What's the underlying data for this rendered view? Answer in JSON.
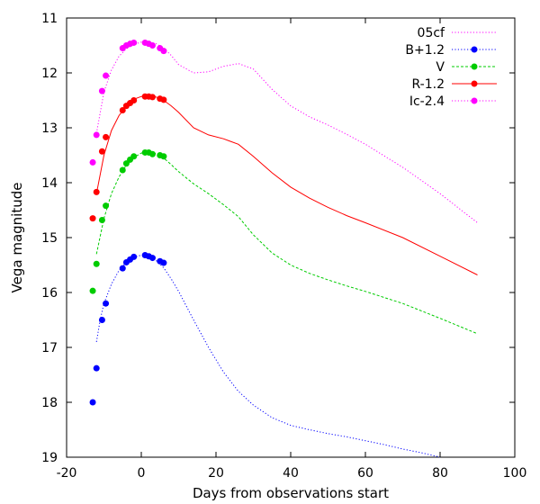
{
  "chart_data": {
    "type": "line",
    "title": "",
    "xlabel": "Days from observations start",
    "ylabel": "Vega magnitude",
    "xlim": [
      -20,
      100
    ],
    "ylim": [
      11,
      19
    ],
    "y_inverted": true,
    "x_ticks": [
      -20,
      0,
      20,
      40,
      60,
      80,
      100
    ],
    "y_ticks": [
      11,
      12,
      13,
      14,
      15,
      16,
      17,
      18,
      19
    ],
    "x_tick_labels": [
      "-20",
      "0",
      "20",
      "40",
      "60",
      "80",
      "100"
    ],
    "y_tick_labels": [
      "11",
      "12",
      "13",
      "14",
      "15",
      "16",
      "17",
      "18",
      "19"
    ],
    "grid": false,
    "legend_position": "top-right",
    "legend": [
      {
        "label": "05cf",
        "color": "#ff00ff",
        "style": "dotted",
        "marker": false
      },
      {
        "label": "B+1.2",
        "color": "#0000ff",
        "style": "dotted",
        "marker": true
      },
      {
        "label": "V",
        "color": "#00cc00",
        "style": "dashed",
        "marker": true
      },
      {
        "label": "R-1.2",
        "color": "#ff0000",
        "style": "solid",
        "marker": true
      },
      {
        "label": "Ic-2.4",
        "color": "#ff00ff",
        "style": "dotted",
        "marker": true
      }
    ],
    "template_curves": [
      {
        "series": "B+1.2",
        "color": "#0000ff",
        "style": "dotted",
        "x": [
          -12,
          -11,
          -10,
          -8,
          -6,
          -4,
          -2,
          0,
          2,
          4,
          6,
          8,
          10,
          14,
          18,
          22,
          26,
          30,
          35,
          40,
          45,
          50,
          55,
          60,
          65,
          70,
          75,
          80
        ],
        "y": [
          16.9,
          16.5,
          16.2,
          15.85,
          15.6,
          15.45,
          15.36,
          15.32,
          15.34,
          15.42,
          15.55,
          15.75,
          15.98,
          16.5,
          17.0,
          17.45,
          17.8,
          18.05,
          18.28,
          18.42,
          18.5,
          18.57,
          18.63,
          18.7,
          18.77,
          18.85,
          18.92,
          19.0
        ]
      },
      {
        "series": "V",
        "color": "#00cc00",
        "style": "dashed",
        "x": [
          -12,
          -10,
          -8,
          -6,
          -4,
          -2,
          0,
          2,
          4,
          6,
          8,
          10,
          14,
          18,
          22,
          26,
          30,
          35,
          40,
          45,
          50,
          55,
          60,
          70,
          80,
          90
        ],
        "y": [
          15.3,
          14.65,
          14.2,
          13.9,
          13.68,
          13.54,
          13.46,
          13.44,
          13.47,
          13.55,
          13.67,
          13.8,
          14.02,
          14.2,
          14.4,
          14.62,
          14.95,
          15.28,
          15.5,
          15.65,
          15.77,
          15.88,
          15.98,
          16.2,
          16.47,
          16.75
        ]
      },
      {
        "series": "R-1.2",
        "color": "#ff0000",
        "style": "solid",
        "x": [
          -12,
          -10,
          -8,
          -6,
          -4,
          -2,
          0,
          2,
          4,
          6,
          8,
          10,
          14,
          18,
          22,
          26,
          30,
          35,
          40,
          45,
          50,
          55,
          60,
          70,
          80,
          90
        ],
        "y": [
          14.2,
          13.5,
          13.05,
          12.78,
          12.6,
          12.48,
          12.43,
          12.42,
          12.44,
          12.5,
          12.6,
          12.72,
          13.0,
          13.13,
          13.2,
          13.3,
          13.52,
          13.82,
          14.08,
          14.28,
          14.45,
          14.6,
          14.73,
          15.0,
          15.34,
          15.68
        ]
      },
      {
        "series": "Ic-2.4",
        "color": "#ff00ff",
        "style": "dotted",
        "x": [
          -12,
          -10,
          -8,
          -6,
          -4,
          -2,
          0,
          2,
          4,
          6,
          8,
          10,
          14,
          18,
          22,
          26,
          30,
          35,
          40,
          45,
          50,
          55,
          60,
          70,
          80,
          90
        ],
        "y": [
          13.1,
          12.35,
          11.95,
          11.7,
          11.56,
          11.48,
          11.44,
          11.44,
          11.47,
          11.55,
          11.68,
          11.85,
          12.0,
          11.98,
          11.88,
          11.83,
          11.93,
          12.3,
          12.6,
          12.8,
          12.95,
          13.12,
          13.3,
          13.72,
          14.2,
          14.73
        ]
      }
    ],
    "series": [
      {
        "name": "B+1.2",
        "color": "#0000ff",
        "x": [
          -13,
          -12,
          -10.5,
          -9.5,
          -5,
          -4,
          -3,
          -2,
          1,
          2,
          3,
          5,
          6
        ],
        "y": [
          18.0,
          17.38,
          16.5,
          16.2,
          15.56,
          15.45,
          15.4,
          15.35,
          15.32,
          15.34,
          15.37,
          15.43,
          15.46
        ]
      },
      {
        "name": "V",
        "color": "#00cc00",
        "x": [
          -13,
          -12,
          -10.5,
          -9.5,
          -5,
          -4,
          -3,
          -2,
          1,
          2,
          3,
          5,
          6
        ],
        "y": [
          15.97,
          15.48,
          14.68,
          14.42,
          13.77,
          13.65,
          13.58,
          13.52,
          13.45,
          13.45,
          13.48,
          13.5,
          13.52
        ]
      },
      {
        "name": "R-1.2",
        "color": "#ff0000",
        "x": [
          -13,
          -12,
          -10.5,
          -9.5,
          -5,
          -4,
          -3,
          -2,
          1,
          2,
          3,
          5,
          6
        ],
        "y": [
          14.65,
          14.17,
          13.43,
          13.17,
          12.68,
          12.6,
          12.55,
          12.5,
          12.43,
          12.43,
          12.44,
          12.47,
          12.49
        ]
      },
      {
        "name": "Ic-2.4",
        "color": "#ff00ff",
        "x": [
          -13,
          -12,
          -10.5,
          -9.5,
          -5,
          -4,
          -3,
          -2,
          1,
          2,
          3,
          5,
          6
        ],
        "y": [
          13.63,
          13.13,
          12.33,
          12.05,
          11.55,
          11.5,
          11.47,
          11.45,
          11.45,
          11.47,
          11.5,
          11.55,
          11.6
        ]
      }
    ]
  }
}
